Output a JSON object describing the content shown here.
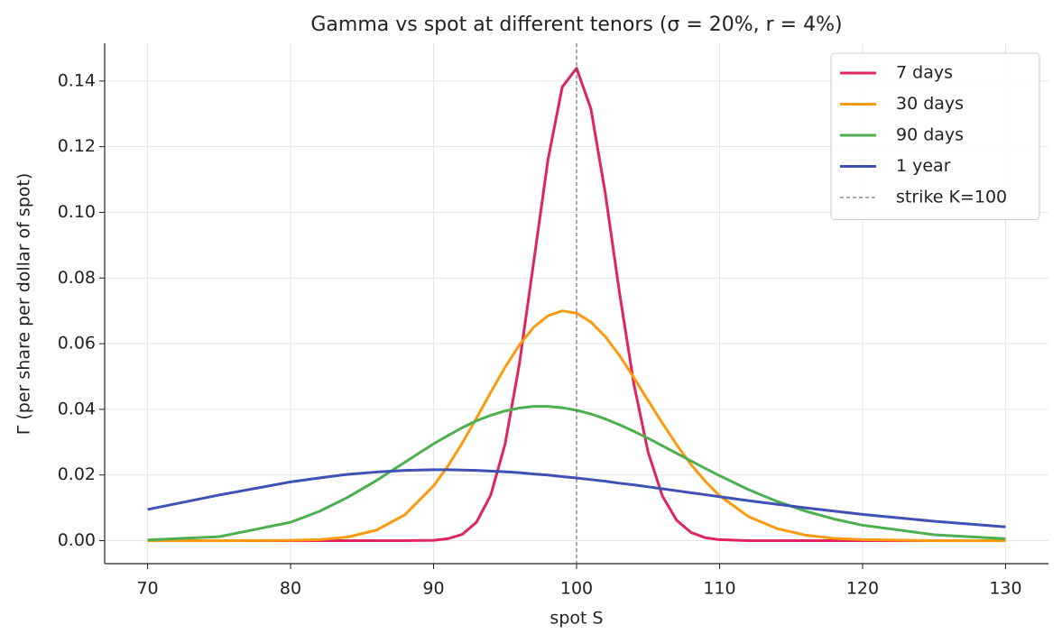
{
  "chart_data": {
    "type": "line",
    "title": "Gamma vs spot at different tenors (σ = 20%, r = 4%)",
    "x_label": "spot S",
    "y_label": "Γ (per share per dollar of spot)",
    "x": [
      70,
      75,
      80,
      82,
      84,
      86,
      88,
      90,
      91,
      92,
      93,
      94,
      95,
      96,
      97,
      98,
      99,
      100,
      101,
      102,
      103,
      104,
      105,
      106,
      107,
      108,
      109,
      110,
      112,
      114,
      116,
      118,
      120,
      125,
      130
    ],
    "series": [
      {
        "name": "7 days",
        "color": "#e0245e",
        "values": [
          0,
          0,
          0,
          0,
          0,
          0,
          0,
          0.0001,
          0.0006,
          0.0019,
          0.0056,
          0.0139,
          0.0294,
          0.0538,
          0.0848,
          0.116,
          0.1382,
          0.1439,
          0.1316,
          0.1061,
          0.0756,
          0.0479,
          0.027,
          0.0136,
          0.0062,
          0.0025,
          0.0009,
          0.0003,
          0,
          0,
          0,
          0,
          0,
          0,
          0
        ]
      },
      {
        "name": "30 days",
        "color": "#fb9a0e",
        "values": [
          0,
          0,
          0.0001,
          0.0003,
          0.0011,
          0.0032,
          0.0079,
          0.0167,
          0.0227,
          0.0297,
          0.0373,
          0.0452,
          0.0528,
          0.0596,
          0.065,
          0.0685,
          0.07,
          0.0693,
          0.0666,
          0.0622,
          0.0564,
          0.0497,
          0.0427,
          0.0358,
          0.0292,
          0.0232,
          0.0181,
          0.0137,
          0.0074,
          0.0037,
          0.0017,
          0.0007,
          0.0003,
          0,
          0
        ]
      },
      {
        "name": "90 days",
        "color": "#4caf50",
        "values": [
          0.0002,
          0.0012,
          0.0056,
          0.0089,
          0.0132,
          0.0183,
          0.0239,
          0.0295,
          0.032,
          0.0344,
          0.0365,
          0.0382,
          0.0395,
          0.0404,
          0.0409,
          0.0409,
          0.0405,
          0.0397,
          0.0386,
          0.0371,
          0.0353,
          0.0333,
          0.0312,
          0.0289,
          0.0266,
          0.0243,
          0.022,
          0.0198,
          0.0156,
          0.012,
          0.009,
          0.0066,
          0.0047,
          0.0018,
          0.0006
        ]
      },
      {
        "name": "1 year",
        "color": "#3f51b5",
        "values": [
          0.0095,
          0.0139,
          0.0179,
          0.0191,
          0.0202,
          0.0209,
          0.0214,
          0.0216,
          0.0216,
          0.0215,
          0.0214,
          0.0212,
          0.021,
          0.0207,
          0.0203,
          0.02,
          0.0195,
          0.0191,
          0.0186,
          0.0181,
          0.0175,
          0.017,
          0.0164,
          0.0158,
          0.0152,
          0.0146,
          0.014,
          0.0134,
          0.0122,
          0.0111,
          0.01,
          0.009,
          0.008,
          0.0059,
          0.0042
        ]
      }
    ],
    "vlines": [
      {
        "x": 100,
        "name": "strike K=100",
        "color": "#555555"
      }
    ],
    "xlim": [
      67,
      133
    ],
    "ylim": [
      -0.007,
      0.1515
    ],
    "xticks": [
      70,
      80,
      90,
      100,
      110,
      120,
      130
    ],
    "yticks": [
      {
        "value": 0,
        "label": "0.00"
      },
      {
        "value": 0.02,
        "label": "0.02"
      },
      {
        "value": 0.04,
        "label": "0.04"
      },
      {
        "value": 0.06,
        "label": "0.06"
      },
      {
        "value": 0.08,
        "label": "0.08"
      },
      {
        "value": 0.1,
        "label": "0.10"
      },
      {
        "value": 0.12,
        "label": "0.12"
      },
      {
        "value": 0.14,
        "label": "0.14"
      }
    ],
    "grid": true,
    "legend": "upper right"
  }
}
